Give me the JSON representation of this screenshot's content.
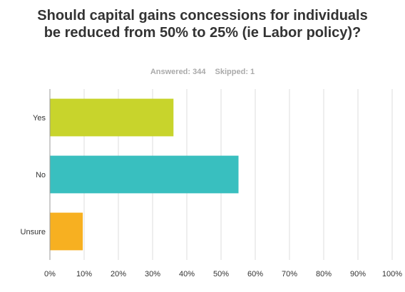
{
  "question": {
    "title": "Should capital gains concessions for individuals be reduced from 50% to 25% (ie Labor policy)?",
    "answered": "Answered: 344",
    "skipped": "Skipped: 1"
  },
  "chart_data": {
    "type": "bar",
    "orientation": "horizontal",
    "categories": [
      "Yes",
      "No",
      "Unsure"
    ],
    "values": [
      36,
      55,
      9.5
    ],
    "colors": [
      "#c8d42c",
      "#39bfbf",
      "#f7b021"
    ],
    "xlim": [
      0,
      100
    ],
    "xticks": [
      "0%",
      "10%",
      "20%",
      "30%",
      "40%",
      "50%",
      "60%",
      "70%",
      "80%",
      "90%",
      "100%"
    ],
    "grid": true,
    "legend": "none"
  }
}
